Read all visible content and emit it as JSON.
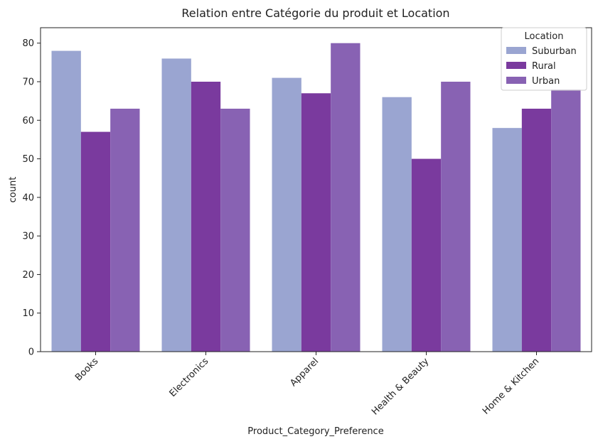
{
  "chart_data": {
    "type": "bar",
    "title": "Relation entre Catégorie du produit et Location",
    "xlabel": "Product_Category_Preference",
    "ylabel": "count",
    "categories": [
      "Books",
      "Electronics",
      "Apparel",
      "Health & Beauty",
      "Home & Kitchen"
    ],
    "series": [
      {
        "name": "Suburban",
        "color": "#9aa5d1",
        "values": [
          78,
          76,
          71,
          66,
          58
        ]
      },
      {
        "name": "Rural",
        "color": "#7a3a9e",
        "values": [
          57,
          70,
          67,
          50,
          63
        ]
      },
      {
        "name": "Urban",
        "color": "#8862b3",
        "values": [
          63,
          63,
          80,
          70,
          68
        ]
      }
    ],
    "ylim": [
      0,
      84
    ],
    "yticks": [
      0,
      10,
      20,
      30,
      40,
      50,
      60,
      70,
      80
    ],
    "grid": false,
    "legend": {
      "title": "Location",
      "placement": "top-right"
    }
  }
}
